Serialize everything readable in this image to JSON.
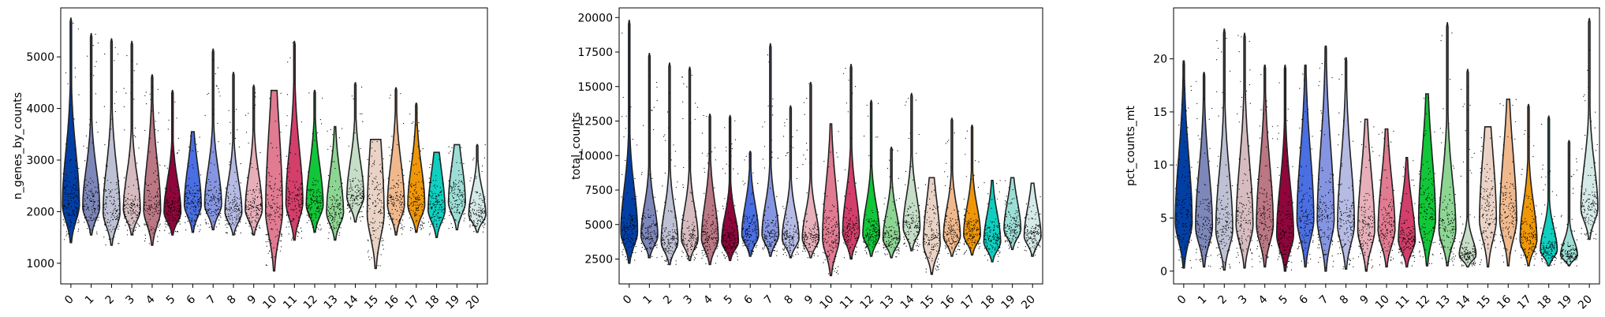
{
  "chart_data": [
    {
      "type": "violin",
      "ylabel": "n_genes_by_counts",
      "xlabel": "",
      "ylim": [
        600,
        5950
      ],
      "yticks": [
        1000,
        2000,
        3000,
        4000,
        5000
      ],
      "categories": [
        "0",
        "1",
        "2",
        "3",
        "4",
        "5",
        "6",
        "7",
        "8",
        "9",
        "10",
        "11",
        "12",
        "13",
        "14",
        "15",
        "16",
        "17",
        "18",
        "19",
        "20"
      ],
      "series": [
        {
          "category": "0",
          "min": 1400,
          "median": 2150,
          "max": 5750
        },
        {
          "category": "1",
          "min": 1550,
          "median": 2100,
          "max": 5450
        },
        {
          "category": "2",
          "min": 1350,
          "median": 2000,
          "max": 5350
        },
        {
          "category": "3",
          "min": 1550,
          "median": 2050,
          "max": 5300
        },
        {
          "category": "4",
          "min": 1350,
          "median": 2050,
          "max": 4650
        },
        {
          "category": "5",
          "min": 1550,
          "median": 2000,
          "max": 4350
        },
        {
          "category": "6",
          "min": 1600,
          "median": 2150,
          "max": 3550
        },
        {
          "category": "7",
          "min": 1650,
          "median": 2150,
          "max": 5150
        },
        {
          "category": "8",
          "min": 1550,
          "median": 2000,
          "max": 4700
        },
        {
          "category": "9",
          "min": 1550,
          "median": 2050,
          "max": 4450
        },
        {
          "category": "10",
          "min": 850,
          "median": 2050,
          "max": 4350
        },
        {
          "category": "11",
          "min": 1450,
          "median": 2200,
          "max": 5300
        },
        {
          "category": "12",
          "min": 1600,
          "median": 2150,
          "max": 4350
        },
        {
          "category": "13",
          "min": 1450,
          "median": 2000,
          "max": 3650
        },
        {
          "category": "14",
          "min": 1800,
          "median": 2300,
          "max": 4500
        },
        {
          "category": "15",
          "min": 900,
          "median": 2000,
          "max": 3400
        },
        {
          "category": "16",
          "min": 1550,
          "median": 2150,
          "max": 4400
        },
        {
          "category": "17",
          "min": 1600,
          "median": 2150,
          "max": 4100
        },
        {
          "category": "18",
          "min": 1500,
          "median": 2050,
          "max": 3150
        },
        {
          "category": "19",
          "min": 1650,
          "median": 2200,
          "max": 3300
        },
        {
          "category": "20",
          "min": 1600,
          "median": 1950,
          "max": 3300
        }
      ]
    },
    {
      "type": "violin",
      "ylabel": "total_counts",
      "xlabel": "",
      "ylim": [
        700,
        20700
      ],
      "yticks": [
        2500,
        5000,
        7500,
        10000,
        12500,
        15000,
        17500,
        20000
      ],
      "yticklabels": [
        "2500",
        "5000",
        "7500",
        "10000",
        "12500",
        "15000",
        "17500",
        "20000"
      ],
      "categories": [
        "0",
        "1",
        "2",
        "3",
        "4",
        "5",
        "6",
        "7",
        "8",
        "9",
        "10",
        "11",
        "12",
        "13",
        "14",
        "15",
        "16",
        "17",
        "18",
        "19",
        "20"
      ],
      "series": [
        {
          "category": "0",
          "min": 2200,
          "median": 4500,
          "max": 19800
        },
        {
          "category": "1",
          "min": 2600,
          "median": 4200,
          "max": 17400
        },
        {
          "category": "2",
          "min": 2100,
          "median": 3800,
          "max": 16700
        },
        {
          "category": "3",
          "min": 2400,
          "median": 4000,
          "max": 16400
        },
        {
          "category": "4",
          "min": 2100,
          "median": 4000,
          "max": 13000
        },
        {
          "category": "5",
          "min": 2400,
          "median": 3800,
          "max": 12900
        },
        {
          "category": "6",
          "min": 2700,
          "median": 4300,
          "max": 10300
        },
        {
          "category": "7",
          "min": 2700,
          "median": 4300,
          "max": 18100
        },
        {
          "category": "8",
          "min": 2600,
          "median": 4000,
          "max": 13600
        },
        {
          "category": "9",
          "min": 2600,
          "median": 4000,
          "max": 15300
        },
        {
          "category": "10",
          "min": 1300,
          "median": 4100,
          "max": 12300
        },
        {
          "category": "11",
          "min": 2500,
          "median": 4500,
          "max": 16600
        },
        {
          "category": "12",
          "min": 2700,
          "median": 4300,
          "max": 14000
        },
        {
          "category": "13",
          "min": 2600,
          "median": 4000,
          "max": 10600
        },
        {
          "category": "14",
          "min": 3100,
          "median": 4800,
          "max": 14500
        },
        {
          "category": "15",
          "min": 1400,
          "median": 3700,
          "max": 8400
        },
        {
          "category": "16",
          "min": 2700,
          "median": 4200,
          "max": 12700
        },
        {
          "category": "17",
          "min": 2800,
          "median": 4300,
          "max": 12200
        },
        {
          "category": "18",
          "min": 2300,
          "median": 3800,
          "max": 8200
        },
        {
          "category": "19",
          "min": 3200,
          "median": 4700,
          "max": 8400
        },
        {
          "category": "20",
          "min": 2700,
          "median": 4200,
          "max": 8000
        }
      ]
    },
    {
      "type": "violin",
      "ylabel": "pct_counts_mt",
      "xlabel": "",
      "ylim": [
        -1.2,
        24.8
      ],
      "yticks": [
        0,
        5,
        10,
        15,
        20
      ],
      "categories": [
        "0",
        "1",
        "2",
        "3",
        "4",
        "5",
        "6",
        "7",
        "8",
        "9",
        "10",
        "11",
        "12",
        "13",
        "14",
        "15",
        "16",
        "17",
        "18",
        "19",
        "20"
      ],
      "series": [
        {
          "category": "0",
          "min": 0.3,
          "median": 4.8,
          "max": 19.8
        },
        {
          "category": "1",
          "min": 0.4,
          "median": 4.3,
          "max": 18.7
        },
        {
          "category": "2",
          "min": 0.1,
          "median": 4.0,
          "max": 22.8
        },
        {
          "category": "3",
          "min": 0.3,
          "median": 4.5,
          "max": 22.4
        },
        {
          "category": "4",
          "min": 0.4,
          "median": 4.5,
          "max": 19.4
        },
        {
          "category": "5",
          "min": 0.0,
          "median": 3.5,
          "max": 19.4
        },
        {
          "category": "6",
          "min": 0.4,
          "median": 5.0,
          "max": 19.4
        },
        {
          "category": "7",
          "min": 0.0,
          "median": 5.0,
          "max": 21.2
        },
        {
          "category": "8",
          "min": 0.2,
          "median": 4.5,
          "max": 20.1
        },
        {
          "category": "9",
          "min": 0.0,
          "median": 4.0,
          "max": 14.3
        },
        {
          "category": "10",
          "min": 0.4,
          "median": 4.0,
          "max": 13.4
        },
        {
          "category": "11",
          "min": 0.4,
          "median": 3.0,
          "max": 10.7
        },
        {
          "category": "12",
          "min": 0.5,
          "median": 5.0,
          "max": 16.7
        },
        {
          "category": "13",
          "min": 0.5,
          "median": 4.0,
          "max": 23.4
        },
        {
          "category": "14",
          "min": 0.4,
          "median": 1.5,
          "max": 19.0
        },
        {
          "category": "15",
          "min": 0.4,
          "median": 5.0,
          "max": 13.6
        },
        {
          "category": "16",
          "min": 0.5,
          "median": 5.0,
          "max": 16.2
        },
        {
          "category": "17",
          "min": 0.5,
          "median": 3.0,
          "max": 15.7
        },
        {
          "category": "18",
          "min": 0.5,
          "median": 2.0,
          "max": 14.6
        },
        {
          "category": "19",
          "min": 0.5,
          "median": 1.5,
          "max": 12.3
        },
        {
          "category": "20",
          "min": 3.0,
          "median": 6.0,
          "max": 23.8
        }
      ]
    }
  ],
  "palette": [
    "#023fa5",
    "#7d87b9",
    "#bec1d4",
    "#d6bcc0",
    "#bb7784",
    "#8e063b",
    "#4a6fe3",
    "#8595e1",
    "#b5bbe3",
    "#e6afb9",
    "#e07b91",
    "#d33f6a",
    "#11c638",
    "#8dd593",
    "#c6dec7",
    "#ead3c6",
    "#f0b98d",
    "#ef9708",
    "#0fcfc0",
    "#9cded6",
    "#d5eae7"
  ]
}
